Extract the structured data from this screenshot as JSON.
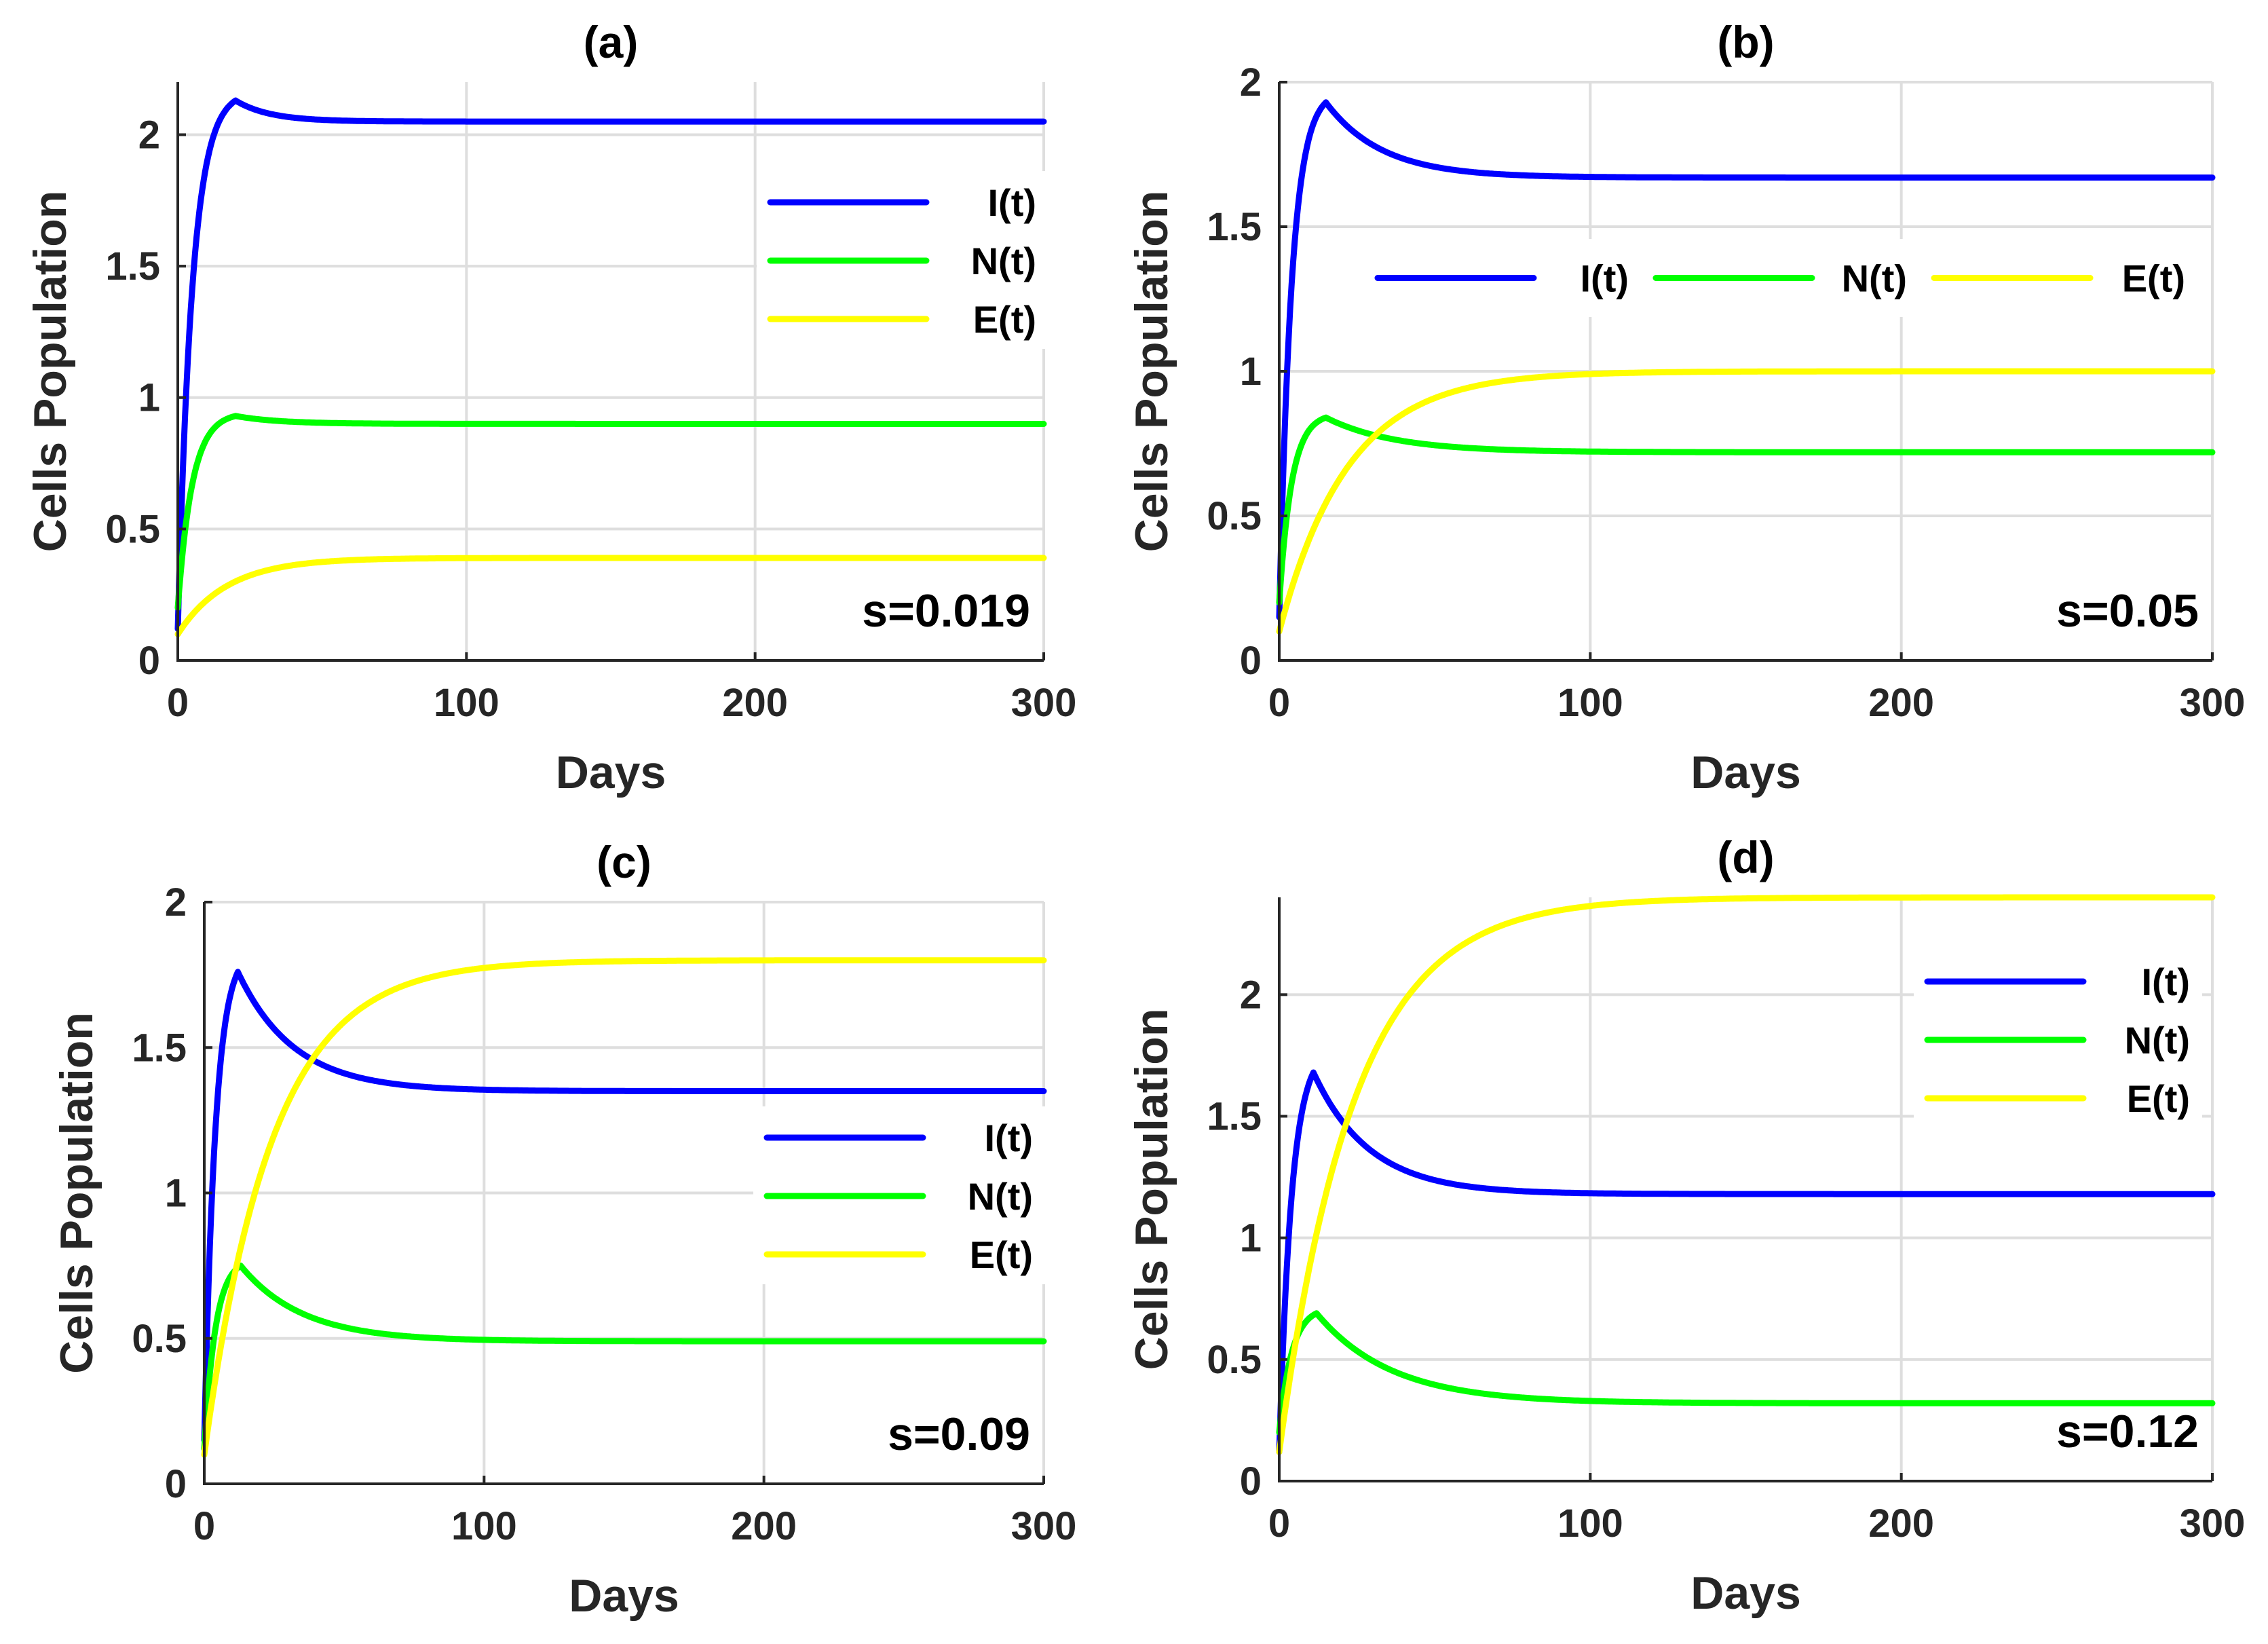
{
  "chart_data": [
    {
      "id": "a",
      "type": "line",
      "title": "(a)",
      "xlabel": "Days",
      "ylabel": "Cells Population",
      "xlim": [
        0,
        300
      ],
      "ylim": [
        0,
        2.2
      ],
      "xticks": [
        0,
        100,
        200,
        300
      ],
      "yticks": [
        0,
        0.5,
        1,
        1.5,
        2
      ],
      "ytick_labels": [
        "0",
        "0.5",
        "1",
        "1.5",
        "2"
      ],
      "grid": true,
      "annotation": "s=0.019",
      "legend": {
        "placement": "top-right",
        "orientation": "vertical"
      },
      "series": [
        {
          "name": "I(t)",
          "color": "#0000ff",
          "start": 0.12,
          "peak": 2.13,
          "peak_day": 20,
          "steady": 2.05,
          "rise": 5,
          "decay": 12
        },
        {
          "name": "N(t)",
          "color": "#00ff00",
          "start": 0.2,
          "peak": 0.93,
          "peak_day": 20,
          "steady": 0.9,
          "rise": 5,
          "decay": 15
        },
        {
          "name": "E(t)",
          "color": "#ffff00",
          "start": 0.1,
          "steady": 0.39,
          "tau": 17
        }
      ]
    },
    {
      "id": "b",
      "type": "line",
      "title": "(b)",
      "xlabel": "Days",
      "ylabel": "Cells Population",
      "xlim": [
        0,
        300
      ],
      "ylim": [
        0,
        2
      ],
      "xticks": [
        0,
        100,
        200,
        300
      ],
      "yticks": [
        0,
        0.5,
        1,
        1.5,
        2
      ],
      "ytick_labels": [
        "0",
        "0.5",
        "1",
        "1.5",
        "2"
      ],
      "grid": true,
      "annotation": "s=0.05",
      "legend": {
        "placement": "top",
        "orientation": "horizontal"
      },
      "series": [
        {
          "name": "I(t)",
          "color": "#0000ff",
          "start": 0.15,
          "peak": 1.93,
          "peak_day": 15,
          "steady": 1.67,
          "rise": 4,
          "decay": 18
        },
        {
          "name": "N(t)",
          "color": "#00ff00",
          "start": 0.2,
          "peak": 0.84,
          "peak_day": 15,
          "steady": 0.72,
          "rise": 4,
          "decay": 22
        },
        {
          "name": "E(t)",
          "color": "#ffff00",
          "start": 0.1,
          "steady": 1.0,
          "tau": 22
        }
      ]
    },
    {
      "id": "c",
      "type": "line",
      "title": "(c)",
      "xlabel": "Days",
      "ylabel": "Cells Population",
      "xlim": [
        0,
        300
      ],
      "ylim": [
        0,
        2
      ],
      "xticks": [
        0,
        100,
        200,
        300
      ],
      "yticks": [
        0,
        0.5,
        1,
        1.5,
        2
      ],
      "ytick_labels": [
        "0",
        "0.5",
        "1",
        "1.5",
        "2"
      ],
      "grid": true,
      "annotation": "s=0.09",
      "legend": {
        "placement": "center-right",
        "orientation": "vertical"
      },
      "series": [
        {
          "name": "I(t)",
          "color": "#0000ff",
          "start": 0.15,
          "peak": 1.76,
          "peak_day": 12,
          "steady": 1.35,
          "rise": 4,
          "decay": 20
        },
        {
          "name": "N(t)",
          "color": "#00ff00",
          "start": 0.12,
          "peak": 0.75,
          "peak_day": 13,
          "steady": 0.49,
          "rise": 4,
          "decay": 22
        },
        {
          "name": "E(t)",
          "color": "#ffff00",
          "start": 0.1,
          "steady": 1.8,
          "tau": 24
        }
      ]
    },
    {
      "id": "d",
      "type": "line",
      "title": "(d)",
      "xlabel": "Days",
      "ylabel": "Cells Population",
      "xlim": [
        0,
        300
      ],
      "ylim": [
        0,
        2.4
      ],
      "xticks": [
        0,
        100,
        200,
        300
      ],
      "yticks": [
        0,
        0.5,
        1,
        1.5,
        2
      ],
      "ytick_labels": [
        "0",
        "0.5",
        "1",
        "1.5",
        "2"
      ],
      "grid": true,
      "annotation": "s=0.12",
      "legend": {
        "placement": "top-right",
        "orientation": "vertical"
      },
      "series": [
        {
          "name": "I(t)",
          "color": "#0000ff",
          "start": 0.12,
          "peak": 1.68,
          "peak_day": 11,
          "steady": 1.18,
          "rise": 4,
          "decay": 18
        },
        {
          "name": "N(t)",
          "color": "#00ff00",
          "start": 0.2,
          "peak": 0.69,
          "peak_day": 12,
          "steady": 0.32,
          "rise": 4,
          "decay": 24
        },
        {
          "name": "E(t)",
          "color": "#ffff00",
          "start": 0.12,
          "steady": 2.4,
          "tau": 24
        }
      ]
    }
  ]
}
